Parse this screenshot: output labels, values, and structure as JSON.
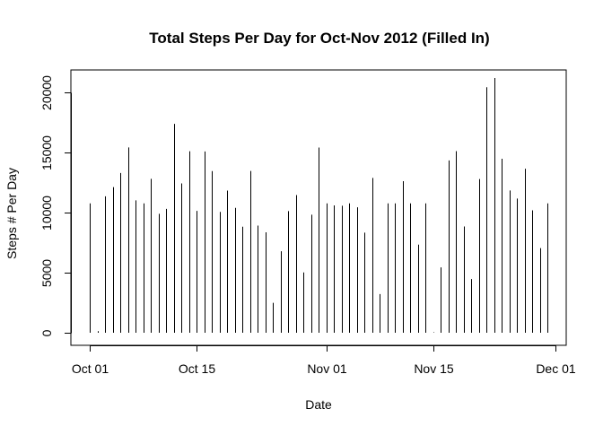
{
  "chart_data": {
    "type": "bar",
    "style": "histogram-spikes",
    "title": "Total Steps Per Day for Oct-Nov 2012 (Filled In)",
    "xlabel": "Date",
    "ylabel": "Steps # Per Day",
    "xlim": [
      "2012-10-01",
      "2012-12-01"
    ],
    "ylim": [
      0,
      21194
    ],
    "x_ticks": [
      {
        "date": "2012-10-01",
        "label": "Oct 01"
      },
      {
        "date": "2012-10-15",
        "label": "Oct 15"
      },
      {
        "date": "2012-11-01",
        "label": "Nov 01"
      },
      {
        "date": "2012-11-15",
        "label": "Nov 15"
      },
      {
        "date": "2012-12-01",
        "label": "Dec 01"
      }
    ],
    "y_ticks": [
      0,
      5000,
      10000,
      15000,
      20000
    ],
    "grid": false,
    "legend": "none",
    "color": "#000000",
    "x": [
      "2012-10-01",
      "2012-10-02",
      "2012-10-03",
      "2012-10-04",
      "2012-10-05",
      "2012-10-06",
      "2012-10-07",
      "2012-10-08",
      "2012-10-09",
      "2012-10-10",
      "2012-10-11",
      "2012-10-12",
      "2012-10-13",
      "2012-10-14",
      "2012-10-15",
      "2012-10-16",
      "2012-10-17",
      "2012-10-18",
      "2012-10-19",
      "2012-10-20",
      "2012-10-21",
      "2012-10-22",
      "2012-10-23",
      "2012-10-24",
      "2012-10-25",
      "2012-10-26",
      "2012-10-27",
      "2012-10-28",
      "2012-10-29",
      "2012-10-30",
      "2012-10-31",
      "2012-11-01",
      "2012-11-02",
      "2012-11-03",
      "2012-11-04",
      "2012-11-05",
      "2012-11-06",
      "2012-11-07",
      "2012-11-08",
      "2012-11-09",
      "2012-11-10",
      "2012-11-11",
      "2012-11-12",
      "2012-11-13",
      "2012-11-14",
      "2012-11-15",
      "2012-11-16",
      "2012-11-17",
      "2012-11-18",
      "2012-11-19",
      "2012-11-20",
      "2012-11-21",
      "2012-11-22",
      "2012-11-23",
      "2012-11-24",
      "2012-11-25",
      "2012-11-26",
      "2012-11-27",
      "2012-11-28",
      "2012-11-29",
      "2012-11-30"
    ],
    "values": [
      10766,
      126,
      11352,
      12116,
      13294,
      15420,
      11015,
      10766,
      12811,
      9900,
      10304,
      17382,
      12426,
      15098,
      10139,
      15084,
      13452,
      10056,
      11829,
      10395,
      8821,
      13460,
      8918,
      8355,
      2492,
      6778,
      10119,
      11458,
      5018,
      9819,
      15414,
      10766,
      10600,
      10571,
      10766,
      10439,
      8334,
      12883,
      3219,
      10766,
      10766,
      12608,
      10765,
      7336,
      10766,
      41,
      5441,
      14339,
      15110,
      8841,
      4472,
      12787,
      20427,
      21194,
      14478,
      11834,
      11162,
      13646,
      10183,
      7047,
      10766
    ]
  }
}
